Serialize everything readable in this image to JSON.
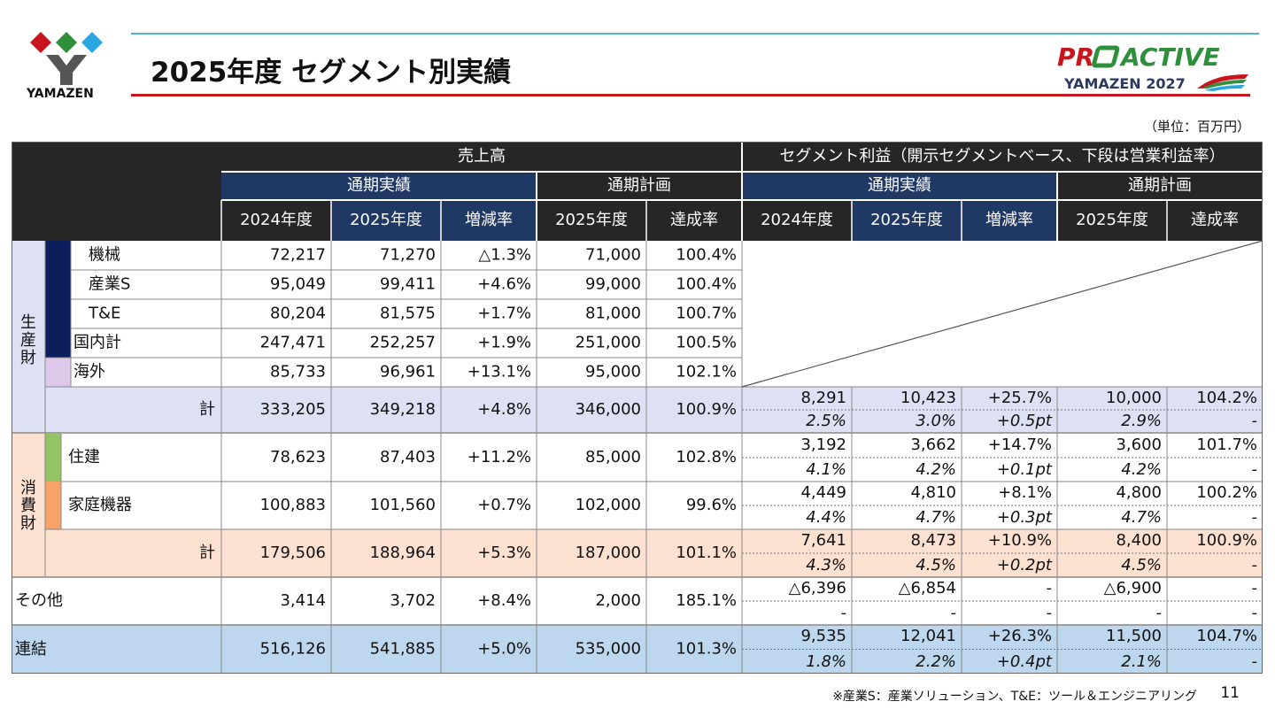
{
  "header": {
    "logo_text": "YAMAZEN",
    "title": "2025年度 セグメント別実績",
    "brand_main": "PR",
    "brand_main2": "ACTIVE",
    "brand_sub": "YAMAZEN 2027"
  },
  "unit": "（単位：百万円）",
  "colors": {
    "dark": "#262626",
    "navy": "#203864",
    "prod_tint": "#dde1f3",
    "prod_navy": "#0c1f5c",
    "overseas": "#ddc8ea",
    "cons_tint": "#fce0d0",
    "cons_green": "#92c464",
    "cons_orange": "#f6a36a",
    "total_blue": "#bdd7ee",
    "title_blue": "#4eb0e4",
    "title_red": "#c8161e"
  },
  "table": {
    "group_sales": "売上高",
    "group_profit": "セグメント利益（開示セグメントベース、下段は営業利益率）",
    "sub_actual": "通期実績",
    "sub_plan": "通期計画",
    "col_headers": [
      "2024年度",
      "2025年度",
      "増減率",
      "2025年度",
      "達成率",
      "2024年度",
      "2025年度",
      "増減率",
      "2025年度",
      "達成率"
    ],
    "section_production": "生産財",
    "section_consumer": "消費財",
    "production_rows": [
      {
        "label": "機械",
        "values": [
          "72,217",
          "71,270",
          "△1.3%",
          "71,000",
          "100.4%"
        ]
      },
      {
        "label": "産業S",
        "values": [
          "95,049",
          "99,411",
          "+4.6%",
          "99,000",
          "100.4%"
        ]
      },
      {
        "label": "T&E",
        "values": [
          "80,204",
          "81,575",
          "+1.7%",
          "81,000",
          "100.7%"
        ]
      },
      {
        "label": "国内計",
        "values": [
          "247,471",
          "252,257",
          "+1.9%",
          "251,000",
          "100.5%"
        ]
      },
      {
        "label": "海外",
        "values": [
          "85,733",
          "96,961",
          "+13.1%",
          "95,000",
          "102.1%"
        ]
      }
    ],
    "production_total": {
      "label": "計",
      "values": [
        "333,205",
        "349,218",
        "+4.8%",
        "346,000",
        "100.9%"
      ],
      "profit": [
        "8,291",
        "10,423",
        "+25.7%",
        "10,000",
        "104.2%"
      ],
      "margin": [
        "2.5%",
        "3.0%",
        "+0.5pt",
        "2.9%",
        "-"
      ]
    },
    "consumer_rows": [
      {
        "label": "住建",
        "values": [
          "78,623",
          "87,403",
          "+11.2%",
          "85,000",
          "102.8%"
        ],
        "profit": [
          "3,192",
          "3,662",
          "+14.7%",
          "3,600",
          "101.7%"
        ],
        "margin": [
          "4.1%",
          "4.2%",
          "+0.1pt",
          "4.2%",
          "-"
        ]
      },
      {
        "label": "家庭機器",
        "values": [
          "100,883",
          "101,560",
          "+0.7%",
          "102,000",
          "99.6%"
        ],
        "profit": [
          "4,449",
          "4,810",
          "+8.1%",
          "4,800",
          "100.2%"
        ],
        "margin": [
          "4.4%",
          "4.7%",
          "+0.3pt",
          "4.7%",
          "-"
        ]
      }
    ],
    "consumer_total": {
      "label": "計",
      "values": [
        "179,506",
        "188,964",
        "+5.3%",
        "187,000",
        "101.1%"
      ],
      "profit": [
        "7,641",
        "8,473",
        "+10.9%",
        "8,400",
        "100.9%"
      ],
      "margin": [
        "4.3%",
        "4.5%",
        "+0.2pt",
        "4.5%",
        "-"
      ]
    },
    "other": {
      "label": "その他",
      "values": [
        "3,414",
        "3,702",
        "+8.4%",
        "2,000",
        "185.1%"
      ],
      "profit": [
        "△6,396",
        "△6,854",
        "-",
        "△6,900",
        "-"
      ],
      "margin": [
        "-",
        "-",
        "-",
        "-",
        "-"
      ]
    },
    "consolidated": {
      "label": "連結",
      "values": [
        "516,126",
        "541,885",
        "+5.0%",
        "535,000",
        "101.3%"
      ],
      "profit": [
        "9,535",
        "12,041",
        "+26.3%",
        "11,500",
        "104.7%"
      ],
      "margin": [
        "1.8%",
        "2.2%",
        "+0.4pt",
        "2.1%",
        "-"
      ]
    }
  },
  "footnote": "※産業S：産業ソリューション、T&E：ツール＆エンジニアリング",
  "page_number": "11"
}
